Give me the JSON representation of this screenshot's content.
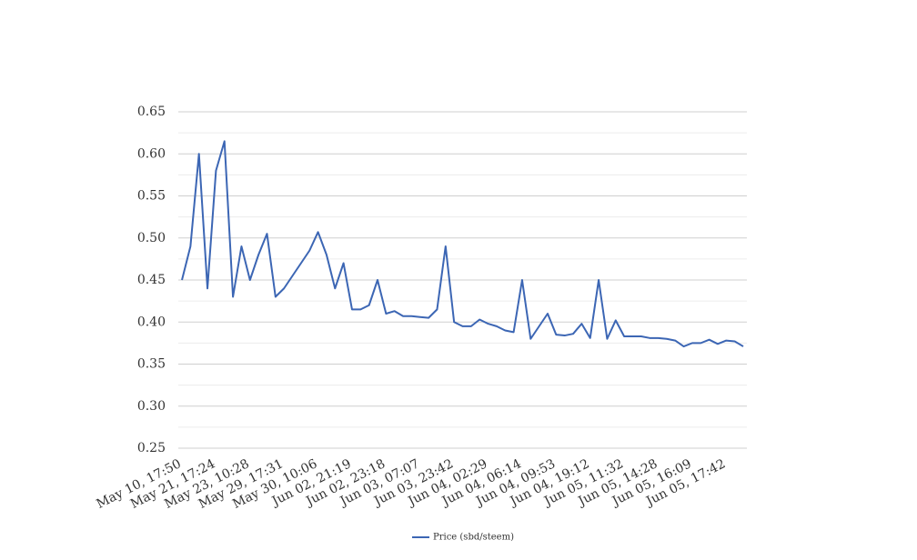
{
  "chart_data": {
    "type": "line",
    "categories": [
      "May 10, 17:50",
      null,
      null,
      null,
      "May 21, 17:24",
      null,
      null,
      null,
      "May 23, 10:28",
      null,
      null,
      null,
      "May 29, 17:31",
      null,
      null,
      null,
      "May 30, 10:06",
      null,
      null,
      null,
      "Jun 02, 21:19",
      null,
      null,
      null,
      "Jun 02, 23:18",
      null,
      null,
      null,
      "Jun 03, 07:07",
      null,
      null,
      null,
      "Jun 03, 23:42",
      null,
      null,
      null,
      "Jun 04, 02:29",
      null,
      null,
      null,
      "Jun 04, 06:14",
      null,
      null,
      null,
      "Jun 04, 09:53",
      null,
      null,
      null,
      "Jun 04, 19:12",
      null,
      null,
      null,
      "Jun 05, 11:32",
      null,
      null,
      null,
      "Jun 05, 14:28",
      null,
      null,
      null,
      "Jun 05, 16:09",
      null,
      null,
      null,
      "Jun 05, 17:42",
      null,
      null
    ],
    "series": [
      {
        "name": "Price (sbd/steem)",
        "color": "#3c66b4",
        "values": [
          0.45,
          0.49,
          0.6,
          0.44,
          0.58,
          0.615,
          0.43,
          0.49,
          0.45,
          0.48,
          0.505,
          0.43,
          0.44,
          0.455,
          0.47,
          0.485,
          0.507,
          0.48,
          0.44,
          0.47,
          0.415,
          0.415,
          0.42,
          0.45,
          0.41,
          0.413,
          0.407,
          0.407,
          0.406,
          0.405,
          0.415,
          0.49,
          0.4,
          0.395,
          0.395,
          0.403,
          0.398,
          0.395,
          0.39,
          0.388,
          0.45,
          0.38,
          0.395,
          0.41,
          0.385,
          0.384,
          0.386,
          0.398,
          0.381,
          0.45,
          0.38,
          0.402,
          0.383,
          0.383,
          0.383,
          0.381,
          0.381,
          0.38,
          0.378,
          0.371,
          0.375,
          0.375,
          0.379,
          0.374,
          0.378,
          0.377,
          0.371
        ]
      }
    ],
    "ylim": [
      0.25,
      0.65
    ],
    "yticks": [
      {
        "value": 0.25,
        "label": "0.25"
      },
      {
        "value": 0.3,
        "label": "0.30"
      },
      {
        "value": 0.35,
        "label": "0.35"
      },
      {
        "value": 0.4,
        "label": "0.40"
      },
      {
        "value": 0.45,
        "label": "0.45"
      },
      {
        "value": 0.5,
        "label": "0.50"
      },
      {
        "value": 0.55,
        "label": "0.55"
      },
      {
        "value": 0.6,
        "label": "0.60"
      },
      {
        "value": 0.65,
        "label": "0.65"
      }
    ],
    "minor_yticks": [
      0.275,
      0.325,
      0.375,
      0.425,
      0.475,
      0.525,
      0.575,
      0.625
    ],
    "grid": true,
    "legend": "bottom"
  }
}
